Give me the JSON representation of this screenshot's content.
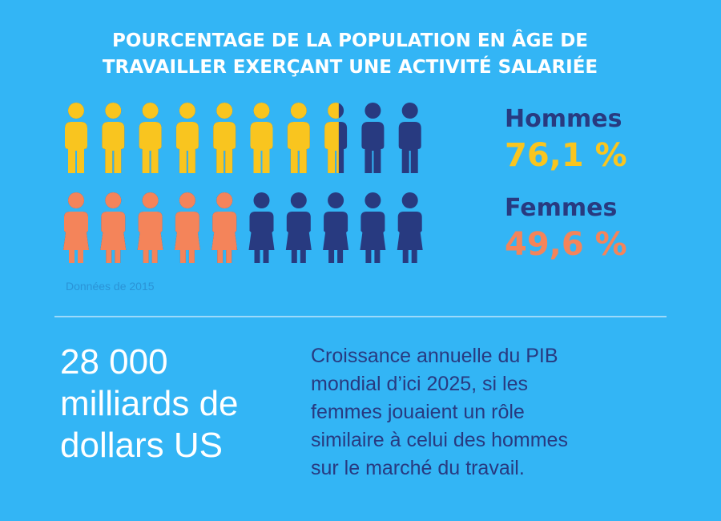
{
  "chart_data": {
    "type": "pictogram",
    "title": [
      "POURCENTAGE DE LA POPULATION EN ÂGE DE",
      "TRAVAILLER EXERÇANT UNE ACTIVITÉ SALARIÉE"
    ],
    "xlim": [
      0,
      100
    ],
    "series": [
      {
        "name": "Hommes",
        "color": "#f9c51f",
        "values": [
          76.1
        ],
        "value_labels": [
          "76,1 %"
        ]
      },
      {
        "name": "Femmes",
        "color": "#f4845a",
        "values": [
          49.6
        ],
        "value_labels": [
          "49,6 %"
        ]
      }
    ],
    "rest_color": "#283a80",
    "note": "Données de 2015"
  },
  "highlight": {
    "figure": [
      "28 000",
      "milliards de",
      "dollars US"
    ],
    "text": [
      "Croissance annuelle du PIB",
      "mondial d’ici 2025, si les",
      "femmes jouaient un rôle",
      "similaire à celui des hommes",
      "sur le marché du travail."
    ]
  }
}
